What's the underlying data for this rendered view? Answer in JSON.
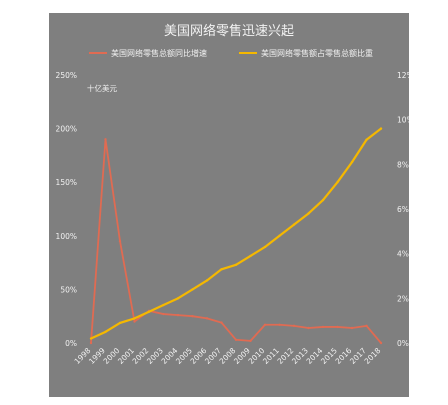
{
  "chart_data": {
    "type": "line",
    "title": "美国网络零售迅速兴起",
    "unit_label": "十亿美元",
    "categories": [
      "1998",
      "1999",
      "2000",
      "2001",
      "2002",
      "2003",
      "2004",
      "2005",
      "2006",
      "2007",
      "2008",
      "2009",
      "2010",
      "2011",
      "2012",
      "2013",
      "2014",
      "2015",
      "2016",
      "2017",
      "2018"
    ],
    "series": [
      {
        "name": "美国网络零售总额同比增速",
        "axis": "left",
        "color": "#e06b52",
        "values": [
          0,
          190,
          95,
          20,
          30,
          27,
          26,
          25,
          23,
          19,
          3,
          2,
          17,
          17,
          16,
          14,
          15,
          15,
          14,
          16,
          0
        ]
      },
      {
        "name": "美国网络零售额占零售总额比重",
        "axis": "right",
        "color": "#f5b800",
        "values": [
          0.2,
          0.5,
          0.9,
          1.1,
          1.4,
          1.7,
          2.0,
          2.4,
          2.8,
          3.3,
          3.5,
          3.9,
          4.3,
          4.8,
          5.3,
          5.8,
          6.4,
          7.2,
          8.1,
          9.1,
          9.6
        ]
      }
    ],
    "y_left": {
      "ticks": [
        "0%",
        "50%",
        "100%",
        "150%",
        "200%",
        "250%"
      ],
      "ylim": [
        0,
        250
      ]
    },
    "y_right": {
      "ticks": [
        "0%",
        "2%",
        "4%",
        "6%",
        "8%",
        "10%",
        "12%"
      ],
      "ylim": [
        0,
        12
      ]
    },
    "grid": false,
    "legend_position": "top"
  }
}
